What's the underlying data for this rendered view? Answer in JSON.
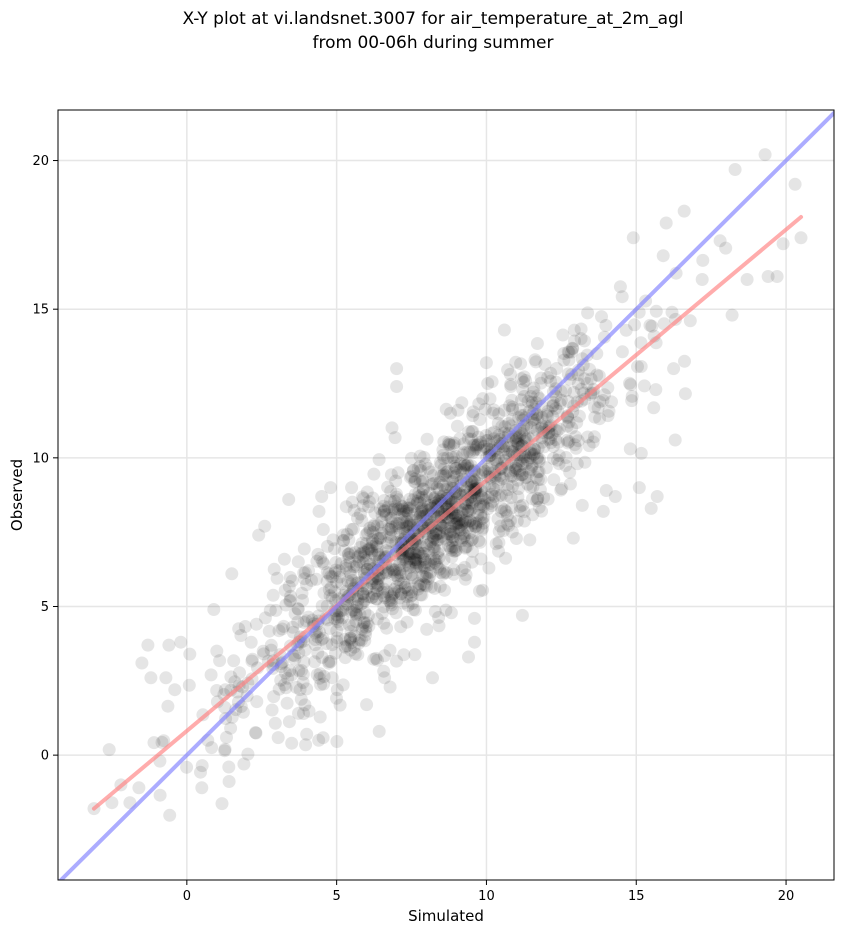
{
  "chart_data": {
    "type": "scatter",
    "title": [
      "X-Y plot at vi.landsnet.3007 for air_temperature_at_2m_agl",
      "from 00-06h during summer"
    ],
    "xlabel": "Simulated",
    "ylabel": "Observed",
    "xlim": [
      -4.3,
      21.6
    ],
    "ylim": [
      -4.2,
      21.7
    ],
    "xticks": [
      0,
      5,
      10,
      15,
      20
    ],
    "yticks": [
      0,
      5,
      10,
      15,
      20
    ],
    "grid": true,
    "point_color": "#000000",
    "point_opacity": 0.1,
    "point_count": 1500,
    "sample_points": [
      [
        -3.1,
        -1.8
      ],
      [
        -2.5,
        -1.6
      ],
      [
        -2.2,
        -1.0
      ],
      [
        -1.9,
        -1.6
      ],
      [
        -1.6,
        -1.1
      ],
      [
        -1.5,
        3.1
      ],
      [
        -1.3,
        3.7
      ],
      [
        -1.2,
        2.6
      ],
      [
        -0.9,
        -0.2
      ],
      [
        -0.7,
        2.6
      ],
      [
        -0.6,
        3.7
      ],
      [
        -0.4,
        2.2
      ],
      [
        -0.2,
        3.8
      ],
      [
        0.1,
        3.4
      ],
      [
        0.5,
        -1.1
      ],
      [
        0.7,
        0.5
      ],
      [
        0.9,
        4.9
      ],
      [
        1.0,
        3.5
      ],
      [
        1.4,
        -0.4
      ],
      [
        1.5,
        6.1
      ],
      [
        2.4,
        7.4
      ],
      [
        2.6,
        7.7
      ],
      [
        3.4,
        8.6
      ],
      [
        3.5,
        0.4
      ],
      [
        4.0,
        0.7
      ],
      [
        4.4,
        0.5
      ],
      [
        4.5,
        8.7
      ],
      [
        4.8,
        9.0
      ],
      [
        5.5,
        9.0
      ],
      [
        6.0,
        1.7
      ],
      [
        6.6,
        2.6
      ],
      [
        7.0,
        13.0
      ],
      [
        7.0,
        12.4
      ],
      [
        8.2,
        2.6
      ],
      [
        8.8,
        11.5
      ],
      [
        9.4,
        3.3
      ],
      [
        9.6,
        3.8
      ],
      [
        9.6,
        4.6
      ],
      [
        10.0,
        13.2
      ],
      [
        10.6,
        14.3
      ],
      [
        11.2,
        4.7
      ],
      [
        12.9,
        7.3
      ],
      [
        13.2,
        8.4
      ],
      [
        13.9,
        8.2
      ],
      [
        14.0,
        8.9
      ],
      [
        14.3,
        8.7
      ],
      [
        14.8,
        10.3
      ],
      [
        14.9,
        17.4
      ],
      [
        15.1,
        9.0
      ],
      [
        15.5,
        8.3
      ],
      [
        15.7,
        8.7
      ],
      [
        15.9,
        16.8
      ],
      [
        16.0,
        17.9
      ],
      [
        16.3,
        10.6
      ],
      [
        16.6,
        18.3
      ],
      [
        17.2,
        16.0
      ],
      [
        17.8,
        17.3
      ],
      [
        18.2,
        14.8
      ],
      [
        18.3,
        19.7
      ],
      [
        18.7,
        16.0
      ],
      [
        19.3,
        20.2
      ],
      [
        19.4,
        16.1
      ],
      [
        19.7,
        16.1
      ],
      [
        19.9,
        17.2
      ],
      [
        20.3,
        19.2
      ],
      [
        20.5,
        17.4
      ]
    ],
    "series": [
      {
        "role": "regression",
        "x": [
          -3.1,
          20.5
        ],
        "y": [
          -1.8,
          18.1
        ],
        "color": "#ff7f7f",
        "opacity": 0.65
      },
      {
        "role": "identity",
        "x": [
          -4.3,
          21.6
        ],
        "y": [
          -4.3,
          21.6
        ],
        "color": "#7f7fff",
        "opacity": 0.65
      }
    ]
  }
}
